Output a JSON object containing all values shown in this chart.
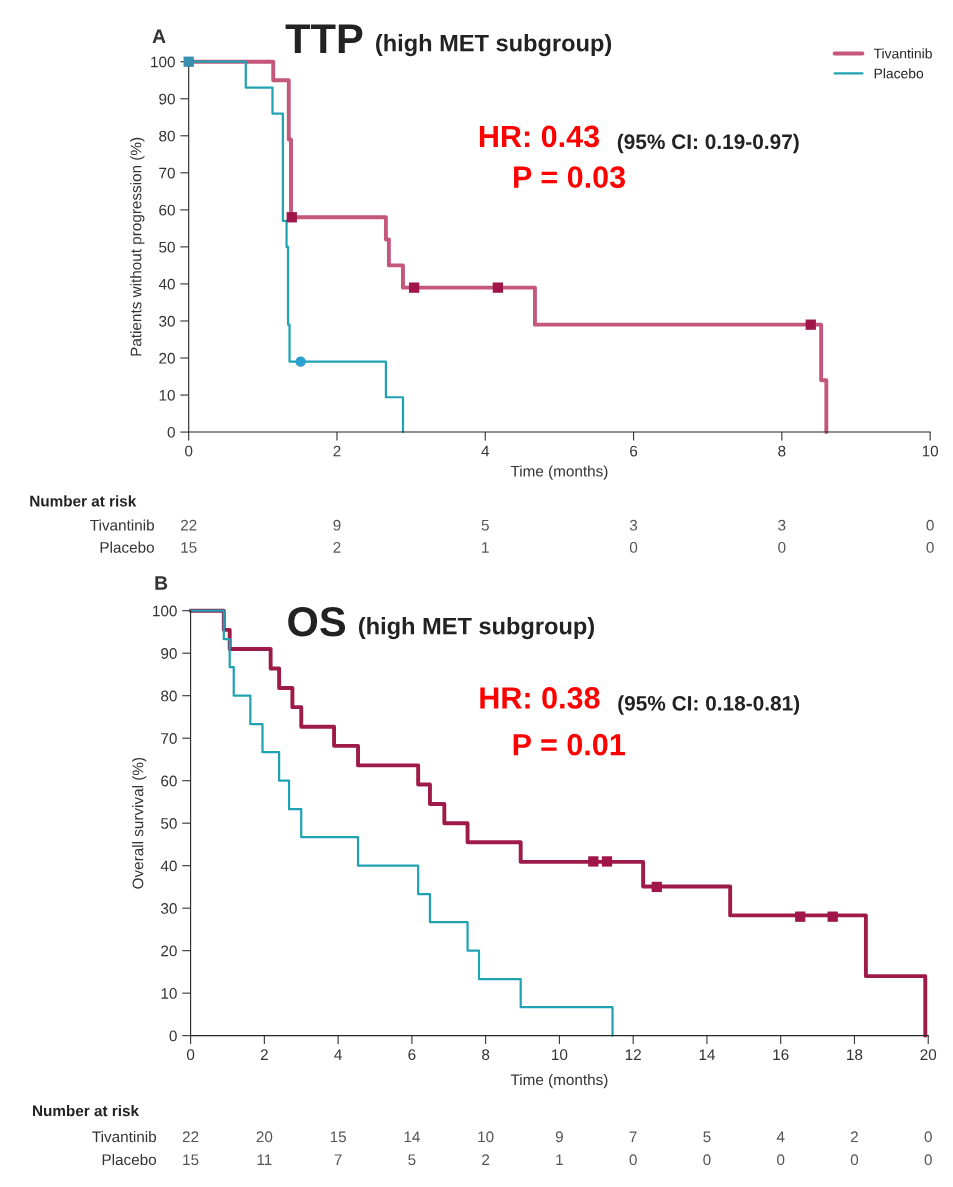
{
  "chart_data": [
    {
      "type": "step",
      "title": "TTP",
      "subtitle": "(high MET subgroup)",
      "xlabel": "Time (months)",
      "ylabel": "Patients without progression (%)",
      "annotations": [
        "A",
        "HR: 0.43",
        "(95% CI: 0.19-0.97)",
        "P = 0.03",
        "Number at risk",
        "Tivantinib",
        "22",
        "9",
        "5",
        "3",
        "3",
        "0",
        "Placebo",
        "15",
        "2",
        "1",
        "0",
        "0",
        "0"
      ],
      "xlim": [
        0,
        10
      ],
      "ylim": [
        0,
        100
      ],
      "xticks": [
        0,
        2,
        4,
        6,
        8,
        10
      ],
      "yticks": [
        0,
        10,
        20,
        30,
        40,
        50,
        60,
        70,
        80,
        90,
        100
      ],
      "legend": "top right",
      "grid": false,
      "series": [
        {
          "name": "Tivantinib",
          "color": "#c4577a",
          "x": [
            0,
            1.14,
            1.35,
            1.38,
            2.66,
            2.7,
            2.89,
            4.67,
            8.53,
            8.6
          ],
          "values": [
            100,
            95,
            79,
            58,
            52,
            45,
            39,
            29,
            14,
            0
          ]
        },
        {
          "name": "Placebo",
          "color": "#1fa3b3",
          "x": [
            0,
            0.77,
            1.13,
            1.27,
            1.32,
            1.34,
            1.36,
            2.66,
            2.89
          ],
          "values": [
            100,
            93,
            86,
            57,
            50,
            29,
            19,
            9.4,
            0
          ]
        },
        {
          "type": "scatter",
          "marker": "square",
          "color": "#a0154a",
          "x": [
            1.39,
            3.04,
            4.17,
            8.39
          ],
          "values": [
            58,
            39,
            39,
            29
          ]
        },
        {
          "type": "scatter",
          "marker": "square",
          "color": "#3a8fb0",
          "x": [
            0
          ],
          "values": [
            100
          ]
        },
        {
          "type": "scatter",
          "marker": "circle",
          "color": "#2a9fd0",
          "x": [
            1.51
          ],
          "values": [
            19
          ]
        }
      ]
    },
    {
      "type": "step",
      "title": "OS",
      "subtitle": "(high MET subgroup)",
      "xlabel": "Time (months)",
      "ylabel": "Overall survival (%)",
      "annotations": [
        "B",
        "HR: 0.38",
        "(95% CI: 0.18-0.81)",
        "P = 0.01",
        "Number at risk",
        "Tivantinib",
        "22",
        "20",
        "15",
        "14",
        "10",
        "9",
        "7",
        "5",
        "4",
        "2",
        "0",
        "Placebo",
        "15",
        "11",
        "7",
        "5",
        "2",
        "1",
        "0",
        "0",
        "0",
        "0",
        "0"
      ],
      "xlim": [
        0,
        20
      ],
      "ylim": [
        0,
        100
      ],
      "xticks": [
        0,
        2,
        4,
        6,
        8,
        10,
        12,
        14,
        16,
        18,
        20
      ],
      "yticks": [
        0,
        10,
        20,
        30,
        40,
        50,
        60,
        70,
        80,
        90,
        100
      ],
      "grid": false,
      "series": [
        {
          "color": "#9e1a48",
          "x": [
            0,
            0.9,
            1.06,
            2.17,
            2.4,
            2.76,
            3.0,
            3.89,
            4.54,
            6.17,
            6.49,
            6.88,
            7.51,
            8.95,
            12.27,
            14.63,
            18.31,
            19.92
          ],
          "values": [
            100,
            95.5,
            91,
            86.4,
            81.8,
            77.3,
            72.7,
            68.2,
            63.6,
            59.1,
            54.5,
            50,
            45.5,
            40.9,
            35.1,
            28.3,
            14,
            0
          ]
        },
        {
          "color": "#1fa3b3",
          "x": [
            0,
            0.9,
            1.06,
            1.17,
            1.62,
            1.95,
            2.4,
            2.67,
            3.0,
            4.54,
            6.17,
            6.49,
            7.51,
            7.82,
            8.95,
            11.44
          ],
          "values": [
            100,
            93.3,
            86.7,
            80,
            73.3,
            66.7,
            60,
            53.3,
            46.7,
            40,
            33.3,
            26.7,
            20,
            13.3,
            6.7,
            0
          ]
        },
        {
          "type": "scatter",
          "marker": "square",
          "color": "#a0154a",
          "x": [
            10.92,
            11.29,
            12.64,
            16.53,
            17.41
          ],
          "values": [
            41,
            41,
            35,
            28,
            28
          ]
        }
      ]
    }
  ]
}
